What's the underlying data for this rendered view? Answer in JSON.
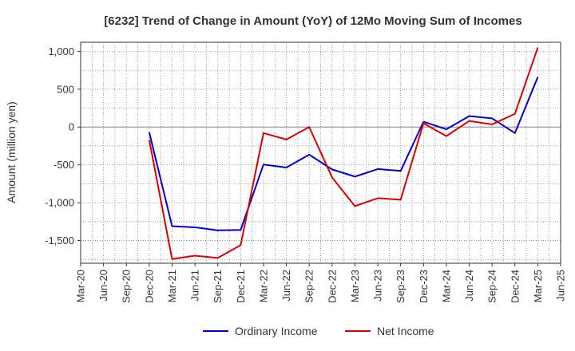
{
  "chart_data": {
    "type": "line",
    "title": "[6232]  Trend of Change in Amount (YoY) of 12Mo Moving Sum of Incomes",
    "xlabel": "",
    "ylabel": "Amount (million yen)",
    "ylim": [
      -1800,
      1120
    ],
    "yticks": [
      1000,
      500,
      0,
      -500,
      -1000,
      -1500
    ],
    "ytick_labels": [
      "1,000",
      "500",
      "0",
      "-500",
      "-1,000",
      "-1,500"
    ],
    "categories": [
      "Mar-20",
      "Jun-20",
      "Sep-20",
      "Dec-20",
      "Mar-21",
      "Jun-21",
      "Sep-21",
      "Dec-21",
      "Mar-22",
      "Jun-22",
      "Sep-22",
      "Dec-22",
      "Mar-23",
      "Jun-23",
      "Sep-23",
      "Dec-23",
      "Mar-24",
      "Jun-24",
      "Sep-24",
      "Dec-24",
      "Mar-25",
      "Jun-25"
    ],
    "grid": true,
    "legend_position": "bottom-center",
    "series": [
      {
        "name": "Ordinary Income",
        "color": "#0000dd",
        "values": [
          null,
          null,
          null,
          -70,
          -1310,
          -1325,
          -1365,
          -1360,
          -495,
          -535,
          -365,
          -560,
          -655,
          -555,
          -580,
          70,
          -30,
          145,
          115,
          -80,
          660,
          null
        ]
      },
      {
        "name": "Net Income",
        "color": "#dd0000",
        "values": [
          null,
          null,
          null,
          -170,
          -1745,
          -1700,
          -1730,
          -1560,
          -80,
          -165,
          0,
          -665,
          -1045,
          -940,
          -960,
          50,
          -120,
          80,
          35,
          175,
          1050,
          null
        ]
      }
    ]
  }
}
